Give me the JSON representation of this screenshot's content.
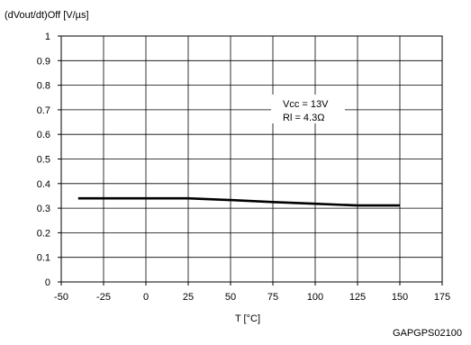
{
  "chart_data": {
    "type": "line",
    "ylabel": "(dVout/dt)Off  [V/µs]",
    "xlabel": "T [°C]",
    "figure_id": "GAPGPS02100",
    "annotation": [
      "Vcc = 13V",
      "Rl = 4.3Ω"
    ],
    "xlim": [
      -50,
      175
    ],
    "ylim": [
      0,
      1
    ],
    "x_ticks": [
      "-50",
      "-25",
      "0",
      "25",
      "50",
      "75",
      "100",
      "125",
      "150",
      "175"
    ],
    "y_ticks": [
      "0",
      "0.1",
      "0.2",
      "0.3",
      "0.4",
      "0.5",
      "0.6",
      "0.7",
      "0.8",
      "0.9",
      "1"
    ],
    "grid": true,
    "series": [
      {
        "x": [
          -40,
          -25,
          0,
          25,
          50,
          75,
          100,
          125,
          150
        ],
        "y": [
          0.34,
          0.34,
          0.34,
          0.34,
          0.333,
          0.325,
          0.318,
          0.311,
          0.311
        ]
      }
    ]
  }
}
